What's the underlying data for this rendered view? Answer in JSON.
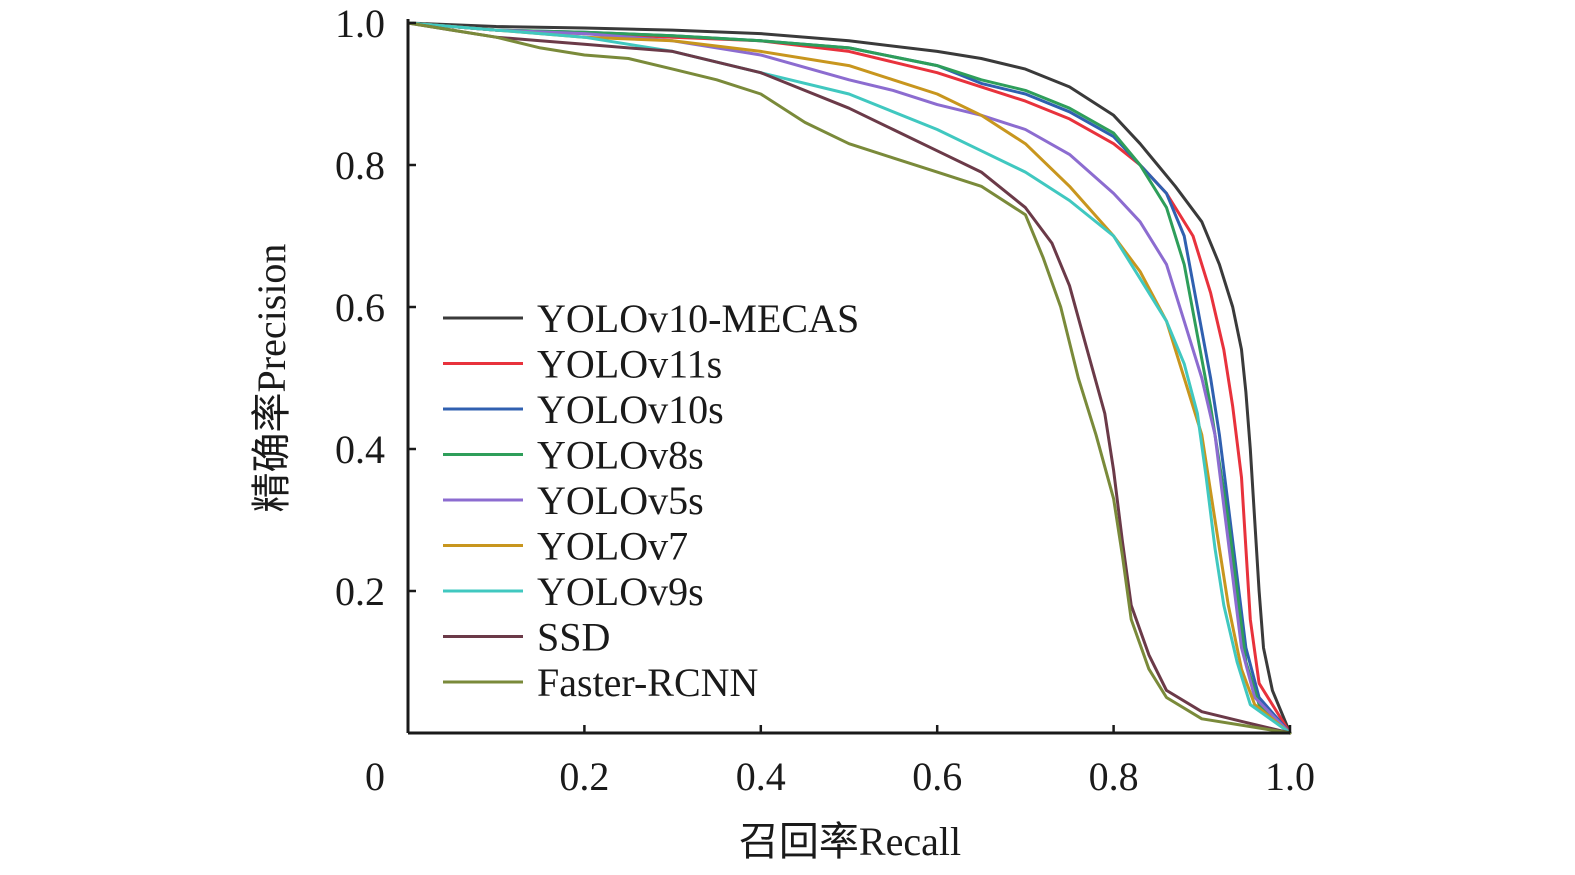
{
  "chart_data": {
    "type": "line",
    "title": "",
    "xlabel": "召回率Recall",
    "ylabel": "精确率Precision",
    "xlim": [
      0,
      1.0
    ],
    "ylim": [
      0,
      1.0
    ],
    "grid": false,
    "legend_position": "center-left",
    "x_tick_labels": [
      "0",
      "0.2",
      "0.4",
      "0.6",
      "0.8",
      "1.0"
    ],
    "y_tick_labels": [
      "0.2",
      "0.4",
      "0.6",
      "0.8",
      "1.0"
    ],
    "x_ticks": [
      0,
      0.2,
      0.4,
      0.6,
      0.8,
      1.0
    ],
    "y_ticks": [
      0.2,
      0.4,
      0.6,
      0.8,
      1.0
    ],
    "series": [
      {
        "name": "YOLOv10-MECAS",
        "color": "#3a3a3a",
        "points": [
          [
            0,
            1.0
          ],
          [
            0.1,
            0.995
          ],
          [
            0.2,
            0.993
          ],
          [
            0.3,
            0.99
          ],
          [
            0.4,
            0.985
          ],
          [
            0.5,
            0.975
          ],
          [
            0.6,
            0.96
          ],
          [
            0.65,
            0.95
          ],
          [
            0.7,
            0.935
          ],
          [
            0.75,
            0.91
          ],
          [
            0.8,
            0.87
          ],
          [
            0.83,
            0.83
          ],
          [
            0.85,
            0.8
          ],
          [
            0.87,
            0.77
          ],
          [
            0.9,
            0.72
          ],
          [
            0.92,
            0.66
          ],
          [
            0.935,
            0.6
          ],
          [
            0.945,
            0.54
          ],
          [
            0.95,
            0.48
          ],
          [
            0.955,
            0.4
          ],
          [
            0.96,
            0.3
          ],
          [
            0.965,
            0.2
          ],
          [
            0.97,
            0.12
          ],
          [
            0.98,
            0.06
          ],
          [
            1.0,
            0.0
          ]
        ]
      },
      {
        "name": "YOLOv11s",
        "color": "#e8323c",
        "points": [
          [
            0,
            1.0
          ],
          [
            0.1,
            0.99
          ],
          [
            0.2,
            0.985
          ],
          [
            0.3,
            0.98
          ],
          [
            0.4,
            0.975
          ],
          [
            0.5,
            0.96
          ],
          [
            0.55,
            0.945
          ],
          [
            0.6,
            0.93
          ],
          [
            0.65,
            0.91
          ],
          [
            0.7,
            0.89
          ],
          [
            0.75,
            0.865
          ],
          [
            0.8,
            0.83
          ],
          [
            0.83,
            0.8
          ],
          [
            0.86,
            0.76
          ],
          [
            0.89,
            0.7
          ],
          [
            0.91,
            0.62
          ],
          [
            0.925,
            0.54
          ],
          [
            0.935,
            0.46
          ],
          [
            0.945,
            0.36
          ],
          [
            0.95,
            0.26
          ],
          [
            0.955,
            0.16
          ],
          [
            0.965,
            0.07
          ],
          [
            1.0,
            0.0
          ]
        ]
      },
      {
        "name": "YOLOv10s",
        "color": "#3060b0",
        "points": [
          [
            0,
            1.0
          ],
          [
            0.1,
            0.99
          ],
          [
            0.2,
            0.987
          ],
          [
            0.3,
            0.982
          ],
          [
            0.4,
            0.975
          ],
          [
            0.5,
            0.965
          ],
          [
            0.6,
            0.94
          ],
          [
            0.65,
            0.915
          ],
          [
            0.7,
            0.9
          ],
          [
            0.75,
            0.875
          ],
          [
            0.8,
            0.84
          ],
          [
            0.83,
            0.8
          ],
          [
            0.86,
            0.76
          ],
          [
            0.88,
            0.7
          ],
          [
            0.895,
            0.6
          ],
          [
            0.91,
            0.5
          ],
          [
            0.92,
            0.42
          ],
          [
            0.93,
            0.32
          ],
          [
            0.94,
            0.22
          ],
          [
            0.95,
            0.12
          ],
          [
            0.965,
            0.05
          ],
          [
            1.0,
            0.0
          ]
        ]
      },
      {
        "name": "YOLOv8s",
        "color": "#2e9e5a",
        "points": [
          [
            0,
            1.0
          ],
          [
            0.1,
            0.99
          ],
          [
            0.2,
            0.987
          ],
          [
            0.3,
            0.982
          ],
          [
            0.4,
            0.975
          ],
          [
            0.5,
            0.965
          ],
          [
            0.6,
            0.94
          ],
          [
            0.65,
            0.92
          ],
          [
            0.7,
            0.905
          ],
          [
            0.75,
            0.88
          ],
          [
            0.8,
            0.845
          ],
          [
            0.83,
            0.8
          ],
          [
            0.86,
            0.74
          ],
          [
            0.88,
            0.66
          ],
          [
            0.895,
            0.56
          ],
          [
            0.91,
            0.46
          ],
          [
            0.92,
            0.38
          ],
          [
            0.93,
            0.3
          ],
          [
            0.94,
            0.2
          ],
          [
            0.95,
            0.1
          ],
          [
            0.965,
            0.04
          ],
          [
            1.0,
            0.0
          ]
        ]
      },
      {
        "name": "YOLOv5s",
        "color": "#8c6cd0",
        "points": [
          [
            0,
            1.0
          ],
          [
            0.1,
            0.99
          ],
          [
            0.2,
            0.985
          ],
          [
            0.3,
            0.975
          ],
          [
            0.4,
            0.955
          ],
          [
            0.5,
            0.92
          ],
          [
            0.55,
            0.905
          ],
          [
            0.6,
            0.885
          ],
          [
            0.65,
            0.87
          ],
          [
            0.7,
            0.85
          ],
          [
            0.75,
            0.815
          ],
          [
            0.8,
            0.76
          ],
          [
            0.83,
            0.72
          ],
          [
            0.86,
            0.66
          ],
          [
            0.88,
            0.58
          ],
          [
            0.9,
            0.5
          ],
          [
            0.915,
            0.42
          ],
          [
            0.925,
            0.32
          ],
          [
            0.935,
            0.22
          ],
          [
            0.945,
            0.12
          ],
          [
            0.96,
            0.05
          ],
          [
            1.0,
            0.0
          ]
        ]
      },
      {
        "name": "YOLOv7",
        "color": "#c8961e",
        "points": [
          [
            0,
            1.0
          ],
          [
            0.1,
            0.99
          ],
          [
            0.2,
            0.98
          ],
          [
            0.3,
            0.975
          ],
          [
            0.4,
            0.96
          ],
          [
            0.5,
            0.94
          ],
          [
            0.55,
            0.92
          ],
          [
            0.6,
            0.9
          ],
          [
            0.65,
            0.87
          ],
          [
            0.7,
            0.83
          ],
          [
            0.75,
            0.77
          ],
          [
            0.8,
            0.7
          ],
          [
            0.83,
            0.65
          ],
          [
            0.86,
            0.58
          ],
          [
            0.88,
            0.5
          ],
          [
            0.9,
            0.42
          ],
          [
            0.91,
            0.34
          ],
          [
            0.92,
            0.26
          ],
          [
            0.93,
            0.18
          ],
          [
            0.945,
            0.09
          ],
          [
            0.96,
            0.04
          ],
          [
            1.0,
            0.0
          ]
        ]
      },
      {
        "name": "YOLOv9s",
        "color": "#40c8c0",
        "points": [
          [
            0,
            1.0
          ],
          [
            0.1,
            0.99
          ],
          [
            0.2,
            0.98
          ],
          [
            0.3,
            0.96
          ],
          [
            0.4,
            0.93
          ],
          [
            0.5,
            0.9
          ],
          [
            0.6,
            0.85
          ],
          [
            0.65,
            0.82
          ],
          [
            0.7,
            0.79
          ],
          [
            0.75,
            0.75
          ],
          [
            0.8,
            0.7
          ],
          [
            0.83,
            0.64
          ],
          [
            0.86,
            0.58
          ],
          [
            0.88,
            0.52
          ],
          [
            0.895,
            0.45
          ],
          [
            0.905,
            0.36
          ],
          [
            0.915,
            0.26
          ],
          [
            0.925,
            0.18
          ],
          [
            0.94,
            0.1
          ],
          [
            0.955,
            0.04
          ],
          [
            1.0,
            0.0
          ]
        ]
      },
      {
        "name": "SSD",
        "color": "#6b3a48",
        "points": [
          [
            0,
            1.0
          ],
          [
            0.05,
            0.99
          ],
          [
            0.1,
            0.98
          ],
          [
            0.15,
            0.975
          ],
          [
            0.2,
            0.97
          ],
          [
            0.3,
            0.96
          ],
          [
            0.4,
            0.93
          ],
          [
            0.5,
            0.88
          ],
          [
            0.55,
            0.85
          ],
          [
            0.6,
            0.82
          ],
          [
            0.65,
            0.79
          ],
          [
            0.7,
            0.74
          ],
          [
            0.73,
            0.69
          ],
          [
            0.75,
            0.63
          ],
          [
            0.77,
            0.54
          ],
          [
            0.79,
            0.45
          ],
          [
            0.8,
            0.37
          ],
          [
            0.81,
            0.27
          ],
          [
            0.82,
            0.18
          ],
          [
            0.84,
            0.11
          ],
          [
            0.86,
            0.06
          ],
          [
            0.9,
            0.03
          ],
          [
            0.95,
            0.015
          ],
          [
            1.0,
            0.0
          ]
        ]
      },
      {
        "name": "Faster-RCNN",
        "color": "#7a8a3a",
        "points": [
          [
            0,
            1.0
          ],
          [
            0.05,
            0.99
          ],
          [
            0.1,
            0.98
          ],
          [
            0.15,
            0.965
          ],
          [
            0.2,
            0.955
          ],
          [
            0.25,
            0.95
          ],
          [
            0.3,
            0.935
          ],
          [
            0.35,
            0.92
          ],
          [
            0.4,
            0.9
          ],
          [
            0.45,
            0.86
          ],
          [
            0.5,
            0.83
          ],
          [
            0.55,
            0.81
          ],
          [
            0.6,
            0.79
          ],
          [
            0.65,
            0.77
          ],
          [
            0.7,
            0.73
          ],
          [
            0.72,
            0.67
          ],
          [
            0.74,
            0.6
          ],
          [
            0.76,
            0.5
          ],
          [
            0.78,
            0.42
          ],
          [
            0.8,
            0.33
          ],
          [
            0.81,
            0.25
          ],
          [
            0.82,
            0.16
          ],
          [
            0.84,
            0.09
          ],
          [
            0.86,
            0.05
          ],
          [
            0.9,
            0.02
          ],
          [
            0.95,
            0.01
          ],
          [
            1.0,
            0.0
          ]
        ]
      }
    ]
  }
}
